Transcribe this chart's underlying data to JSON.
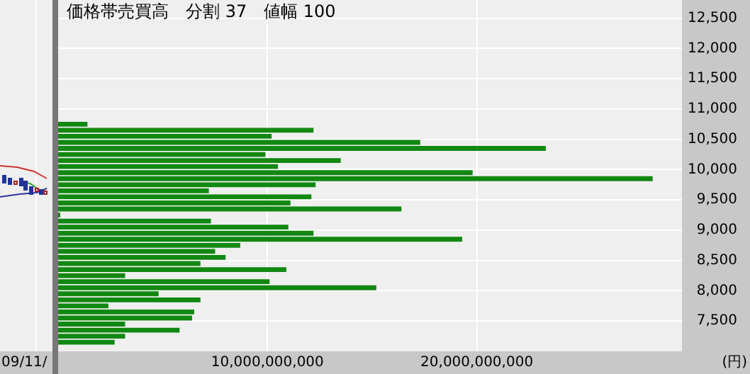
{
  "chart_data": {
    "type": "bar",
    "orientation": "horizontal",
    "title": "価格帯売買高　分割 37　値幅 100",
    "ylabel": "(円)",
    "x": [
      10750,
      10650,
      10550,
      10450,
      10350,
      10250,
      10150,
      10050,
      9950,
      9850,
      9750,
      9650,
      9550,
      9450,
      9350,
      9250,
      9150,
      9050,
      8950,
      8850,
      8750,
      8650,
      8550,
      8450,
      8350,
      8250,
      8150,
      8050,
      7950,
      7850,
      7750,
      7650,
      7550,
      7450,
      7350,
      7250,
      7150
    ],
    "values": [
      1400000000,
      12200000000,
      10200000000,
      17300000000,
      23300000000,
      9900000000,
      13500000000,
      10500000000,
      19800000000,
      28400000000,
      12300000000,
      7200000000,
      12100000000,
      11100000000,
      16400000000,
      100000000,
      7300000000,
      11000000000,
      12200000000,
      19300000000,
      8700000000,
      7500000000,
      8000000000,
      6800000000,
      10900000000,
      3200000000,
      10100000000,
      15200000000,
      4800000000,
      6800000000,
      2400000000,
      6500000000,
      6400000000,
      3200000000,
      5800000000,
      3200000000,
      2700000000
    ],
    "color": "#118811",
    "xlim": [
      0,
      29800000000
    ],
    "xticks": [
      {
        "value": 10000000000,
        "label": "10,000,000,000"
      },
      {
        "value": 20000000000,
        "label": "20,000,000,000"
      }
    ],
    "ylim": [
      7000,
      12800
    ],
    "yticks": [
      {
        "value": 7500,
        "label": "7,500"
      },
      {
        "value": 8000,
        "label": "8,000"
      },
      {
        "value": 8500,
        "label": "8,500"
      },
      {
        "value": 9000,
        "label": "9,000"
      },
      {
        "value": 9500,
        "label": "9,500"
      },
      {
        "value": 10000,
        "label": "10,000"
      },
      {
        "value": 10500,
        "label": "10,500"
      },
      {
        "value": 11000,
        "label": "11,000"
      },
      {
        "value": 11500,
        "label": "11,500"
      },
      {
        "value": 12000,
        "label": "12,000"
      },
      {
        "value": 12500,
        "label": "12,500"
      }
    ],
    "grid": true,
    "legend": false,
    "annotations": [
      "09/11/"
    ]
  }
}
